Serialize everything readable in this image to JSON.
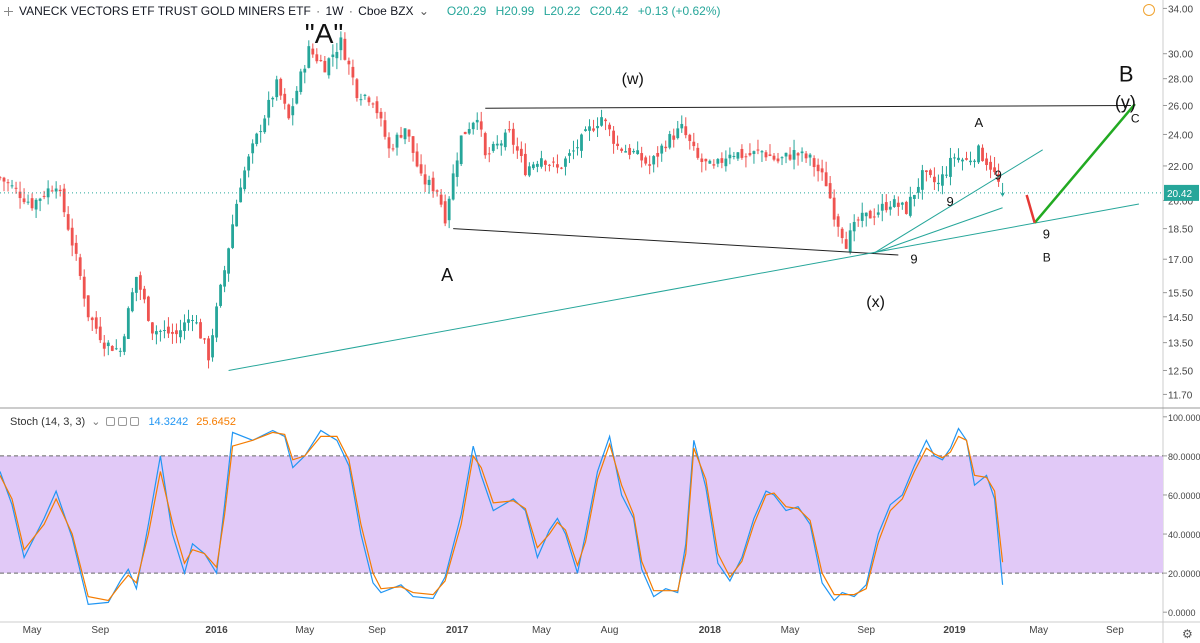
{
  "header": {
    "symbol": "VANECK VECTORS ETF TRUST GOLD MINERS ETF",
    "interval": "1W",
    "exchange": "Cboe BZX",
    "open": "O20.29",
    "high": "H20.99",
    "low": "L20.22",
    "close": "C20.42",
    "change": "+0.13 (+0.62%)"
  },
  "stoch_header": {
    "label": "Stoch (14, 3, 3)",
    "k_value": "14.3242",
    "d_value": "25.6452"
  },
  "colors": {
    "up": "#26a69a",
    "down": "#ef5350",
    "stoch_k": "#2196f3",
    "stoch_d": "#f57c00",
    "band_fill": "#e1c9f7",
    "trendline": "#26a69a",
    "projection_up": "#22aa22",
    "projection_down": "#e53935"
  },
  "chart_data": [
    {
      "type": "candlestick",
      "title": "VANECK VECTORS ETF TRUST GOLD MINERS ETF, 1W, Cboe BZX",
      "y_ticks": [
        "34.00",
        "30.00",
        "28.00",
        "26.00",
        "24.00",
        "22.00",
        "20.00",
        "18.50",
        "17.00",
        "15.50",
        "14.50",
        "13.50",
        "12.50",
        "11.70"
      ],
      "y_range": [
        11.3,
        34.8
      ],
      "last_price": "20.42",
      "x_labels": [
        "May",
        "Sep",
        "2016",
        "May",
        "Sep",
        "2017",
        "May",
        "Aug",
        "2018",
        "May",
        "Sep",
        "2019",
        "May",
        "Sep"
      ],
      "anchors": [
        {
          "t": 0,
          "p": 21.3
        },
        {
          "t": 8,
          "p": 19.8
        },
        {
          "t": 14,
          "p": 21.0
        },
        {
          "t": 22,
          "p": 14.6
        },
        {
          "t": 26,
          "p": 13.5
        },
        {
          "t": 30,
          "p": 13.2
        },
        {
          "t": 34,
          "p": 16.2
        },
        {
          "t": 38,
          "p": 14.0
        },
        {
          "t": 44,
          "p": 13.8
        },
        {
          "t": 48,
          "p": 14.6
        },
        {
          "t": 52,
          "p": 13.0
        },
        {
          "t": 56,
          "p": 16.5
        },
        {
          "t": 60,
          "p": 21.0
        },
        {
          "t": 64,
          "p": 23.8
        },
        {
          "t": 69,
          "p": 27.5
        },
        {
          "t": 72,
          "p": 25.0
        },
        {
          "t": 77,
          "p": 30.3
        },
        {
          "t": 81,
          "p": 29.0
        },
        {
          "t": 85,
          "p": 31.0
        },
        {
          "t": 89,
          "p": 27.0
        },
        {
          "t": 93,
          "p": 26.5
        },
        {
          "t": 97,
          "p": 23.0
        },
        {
          "t": 101,
          "p": 24.5
        },
        {
          "t": 105,
          "p": 21.2
        },
        {
          "t": 109,
          "p": 20.6
        },
        {
          "t": 111,
          "p": 19.1
        },
        {
          "t": 115,
          "p": 23.8
        },
        {
          "t": 119,
          "p": 25.4
        },
        {
          "t": 121,
          "p": 22.5
        },
        {
          "t": 127,
          "p": 24.0
        },
        {
          "t": 131,
          "p": 21.8
        },
        {
          "t": 135,
          "p": 22.6
        },
        {
          "t": 139,
          "p": 21.8
        },
        {
          "t": 143,
          "p": 22.9
        },
        {
          "t": 147,
          "p": 24.3
        },
        {
          "t": 150,
          "p": 25.2
        },
        {
          "t": 154,
          "p": 23.2
        },
        {
          "t": 158,
          "p": 22.8
        },
        {
          "t": 162,
          "p": 22.0
        },
        {
          "t": 166,
          "p": 23.5
        },
        {
          "t": 170,
          "p": 24.4
        },
        {
          "t": 174,
          "p": 22.4
        },
        {
          "t": 178,
          "p": 21.8
        },
        {
          "t": 182,
          "p": 22.9
        },
        {
          "t": 186,
          "p": 22.6
        },
        {
          "t": 190,
          "p": 22.9
        },
        {
          "t": 194,
          "p": 22.3
        },
        {
          "t": 198,
          "p": 22.8
        },
        {
          "t": 202,
          "p": 22.4
        },
        {
          "t": 206,
          "p": 21.0
        },
        {
          "t": 208,
          "p": 19.3
        },
        {
          "t": 211,
          "p": 17.8
        },
        {
          "t": 214,
          "p": 18.9
        },
        {
          "t": 218,
          "p": 19.3
        },
        {
          "t": 222,
          "p": 19.9
        },
        {
          "t": 226,
          "p": 19.5
        },
        {
          "t": 230,
          "p": 21.4
        },
        {
          "t": 234,
          "p": 20.9
        },
        {
          "t": 238,
          "p": 22.6
        },
        {
          "t": 241,
          "p": 22.3
        },
        {
          "t": 244,
          "p": 22.9
        },
        {
          "t": 247,
          "p": 22.0
        },
        {
          "t": 250,
          "p": 20.42
        }
      ],
      "series": [
        {
          "name": "price"
        }
      ]
    },
    {
      "type": "line",
      "title": "Stoch (14, 3, 3)",
      "y_ticks": [
        "100.0000",
        "80.0000",
        "60.0000",
        "40.0000",
        "20.0000",
        "0.0000"
      ],
      "y_range": [
        -4,
        104
      ],
      "bands": [
        20,
        80
      ],
      "series": [
        {
          "name": "%K",
          "anchors": [
            [
              0,
              72
            ],
            [
              3,
              55
            ],
            [
              6,
              28
            ],
            [
              11,
              48
            ],
            [
              14,
              62
            ],
            [
              18,
              38
            ],
            [
              22,
              4
            ],
            [
              27,
              5
            ],
            [
              30,
              16
            ],
            [
              32,
              22
            ],
            [
              34,
              12
            ],
            [
              37,
              45
            ],
            [
              40,
              80
            ],
            [
              43,
              40
            ],
            [
              46,
              20
            ],
            [
              48,
              35
            ],
            [
              51,
              30
            ],
            [
              54,
              20
            ],
            [
              56,
              55
            ],
            [
              58,
              92
            ],
            [
              63,
              88
            ],
            [
              68,
              93
            ],
            [
              71,
              90
            ],
            [
              73,
              74
            ],
            [
              76,
              80
            ],
            [
              80,
              93
            ],
            [
              84,
              88
            ],
            [
              87,
              75
            ],
            [
              90,
              40
            ],
            [
              93,
              15
            ],
            [
              95,
              10
            ],
            [
              100,
              14
            ],
            [
              103,
              8
            ],
            [
              108,
              7
            ],
            [
              111,
              18
            ],
            [
              115,
              50
            ],
            [
              118,
              85
            ],
            [
              120,
              70
            ],
            [
              123,
              52
            ],
            [
              128,
              58
            ],
            [
              131,
              52
            ],
            [
              134,
              28
            ],
            [
              137,
              42
            ],
            [
              139,
              48
            ],
            [
              141,
              40
            ],
            [
              144,
              20
            ],
            [
              146,
              40
            ],
            [
              149,
              72
            ],
            [
              152,
              90
            ],
            [
              155,
              60
            ],
            [
              158,
              48
            ],
            [
              160,
              22
            ],
            [
              163,
              8
            ],
            [
              166,
              12
            ],
            [
              169,
              10
            ],
            [
              171,
              35
            ],
            [
              173,
              88
            ],
            [
              176,
              64
            ],
            [
              179,
              25
            ],
            [
              182,
              16
            ],
            [
              185,
              28
            ],
            [
              188,
              48
            ],
            [
              191,
              62
            ],
            [
              193,
              60
            ],
            [
              196,
              52
            ],
            [
              199,
              54
            ],
            [
              202,
              45
            ],
            [
              205,
              15
            ],
            [
              208,
              6
            ],
            [
              210,
              10
            ],
            [
              213,
              8
            ],
            [
              216,
              14
            ],
            [
              219,
              40
            ],
            [
              222,
              55
            ],
            [
              225,
              60
            ],
            [
              228,
              75
            ],
            [
              231,
              88
            ],
            [
              233,
              80
            ],
            [
              235,
              78
            ],
            [
              237,
              84
            ],
            [
              239,
              94
            ],
            [
              241,
              88
            ],
            [
              243,
              65
            ],
            [
              246,
              70
            ],
            [
              248,
              58
            ],
            [
              250,
              14
            ]
          ]
        },
        {
          "name": "%D",
          "anchors": [
            [
              0,
              70
            ],
            [
              3,
              58
            ],
            [
              6,
              32
            ],
            [
              11,
              45
            ],
            [
              14,
              58
            ],
            [
              18,
              40
            ],
            [
              22,
              8
            ],
            [
              27,
              6
            ],
            [
              30,
              14
            ],
            [
              32,
              19
            ],
            [
              34,
              15
            ],
            [
              37,
              40
            ],
            [
              40,
              72
            ],
            [
              43,
              46
            ],
            [
              46,
              25
            ],
            [
              48,
              32
            ],
            [
              51,
              30
            ],
            [
              54,
              23
            ],
            [
              56,
              50
            ],
            [
              58,
              85
            ],
            [
              63,
              88
            ],
            [
              68,
              92
            ],
            [
              71,
              91
            ],
            [
              73,
              78
            ],
            [
              76,
              80
            ],
            [
              80,
              90
            ],
            [
              84,
              90
            ],
            [
              87,
              78
            ],
            [
              90,
              45
            ],
            [
              93,
              20
            ],
            [
              95,
              12
            ],
            [
              100,
              13
            ],
            [
              103,
              10
            ],
            [
              108,
              9
            ],
            [
              111,
              16
            ],
            [
              115,
              45
            ],
            [
              118,
              80
            ],
            [
              120,
              74
            ],
            [
              123,
              56
            ],
            [
              128,
              57
            ],
            [
              131,
              53
            ],
            [
              134,
              33
            ],
            [
              137,
              40
            ],
            [
              139,
              46
            ],
            [
              141,
              42
            ],
            [
              144,
              24
            ],
            [
              146,
              36
            ],
            [
              149,
              68
            ],
            [
              152,
              86
            ],
            [
              155,
              65
            ],
            [
              158,
              50
            ],
            [
              160,
              26
            ],
            [
              163,
              11
            ],
            [
              166,
              11
            ],
            [
              169,
              11
            ],
            [
              171,
              30
            ],
            [
              173,
              84
            ],
            [
              176,
              68
            ],
            [
              179,
              30
            ],
            [
              182,
              18
            ],
            [
              185,
              26
            ],
            [
              188,
              45
            ],
            [
              191,
              60
            ],
            [
              193,
              61
            ],
            [
              196,
              54
            ],
            [
              199,
              53
            ],
            [
              202,
              47
            ],
            [
              205,
              20
            ],
            [
              208,
              9
            ],
            [
              210,
              9
            ],
            [
              213,
              9
            ],
            [
              216,
              12
            ],
            [
              219,
              36
            ],
            [
              222,
              52
            ],
            [
              225,
              58
            ],
            [
              228,
              72
            ],
            [
              231,
              84
            ],
            [
              233,
              81
            ],
            [
              235,
              79
            ],
            [
              237,
              82
            ],
            [
              239,
              90
            ],
            [
              241,
              88
            ],
            [
              243,
              70
            ],
            [
              246,
              69
            ],
            [
              248,
              62
            ],
            [
              250,
              25.6
            ]
          ]
        }
      ]
    }
  ],
  "annotations": {
    "a_quote": "\"A\"",
    "w": "(w)",
    "a_left": "A",
    "x": "(x)",
    "a_right": "A",
    "nine_1": "9",
    "nine_2": "9",
    "nine_3": "9",
    "nine_4": "9",
    "b_right": "B",
    "b_top": "B",
    "y": "(y)",
    "c": "C"
  }
}
